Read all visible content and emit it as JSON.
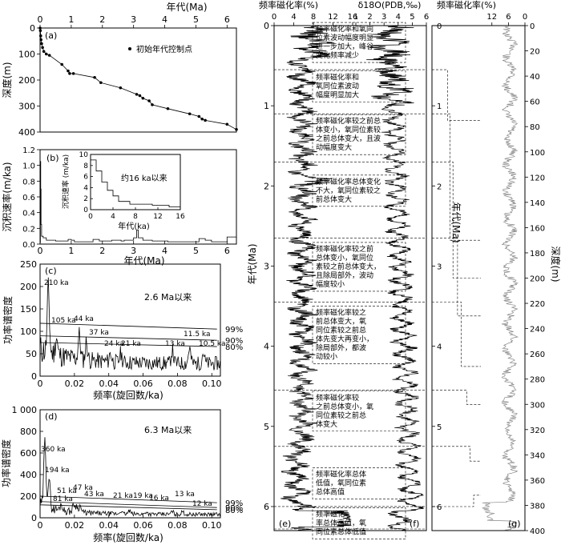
{
  "chart_data": [
    {
      "id": "a",
      "type": "line",
      "panel_label": "(a)",
      "xlabel": "年代(Ma)",
      "ylabel": "深度(m)",
      "xlim": [
        0,
        6.3
      ],
      "ylim": [
        400,
        0
      ],
      "xticks": [
        "0",
        "1",
        "2",
        "3",
        "4",
        "5",
        "6"
      ],
      "yticks": [
        "0",
        "100",
        "200",
        "300",
        "400"
      ],
      "legend": "初始年代控制点",
      "series": [
        {
          "x": [
            0,
            0.01,
            0.02,
            0.03,
            0.05,
            0.08,
            0.12,
            0.2,
            0.3,
            0.7,
            0.9,
            0.95,
            1.07,
            1.75,
            1.95,
            2.58,
            3.1,
            3.2,
            3.3,
            3.5,
            3.6,
            4.1,
            4.8,
            5.1,
            5.2,
            5.3,
            6.0,
            6.3
          ],
          "y": [
            0,
            10,
            30,
            45,
            60,
            75,
            90,
            100,
            105,
            140,
            165,
            175,
            175,
            190,
            210,
            230,
            255,
            260,
            270,
            280,
            295,
            310,
            330,
            340,
            350,
            355,
            370,
            390
          ]
        }
      ]
    },
    {
      "id": "b",
      "type": "line",
      "panel_label": "(b)",
      "xlabel": "年代(Ma)",
      "ylabel": "沉积速率(m/ka)",
      "xlim": [
        0,
        6.3
      ],
      "ylim": [
        0,
        1.2
      ],
      "xticks": [
        "0",
        "1",
        "2",
        "3",
        "4",
        "5",
        "6"
      ],
      "yticks": [
        "0.0",
        "0.2",
        "0.4",
        "0.6",
        "0.8",
        "1.0",
        "1.2"
      ],
      "series": [
        {
          "x": [
            0,
            0.01,
            0.02,
            0.03,
            0.05,
            0.1,
            0.2,
            0.5,
            0.9,
            1.0,
            1.1,
            1.7,
            1.9,
            2.3,
            2.6,
            2.7,
            3.0,
            3.1,
            3.15,
            3.3,
            3.6,
            4.1,
            4.8,
            5.1,
            5.3,
            5.5,
            6.0,
            6.3
          ],
          "y": [
            0.02,
            1.05,
            0.7,
            0.25,
            0.1,
            0.08,
            0.05,
            0.04,
            0.06,
            0.05,
            0.03,
            0.06,
            0.04,
            0.05,
            0.04,
            0.05,
            0.08,
            0.18,
            0.08,
            0.05,
            0.04,
            0.03,
            0.03,
            0.07,
            0.05,
            0.03,
            0.09,
            0.05
          ]
        }
      ],
      "inset": {
        "title": "约16 ka以来",
        "xlabel": "年代(ka)",
        "ylabel": "沉积速率 (m/ka)",
        "xlim": [
          0,
          16
        ],
        "ylim": [
          0,
          10
        ],
        "xticks": [
          "0",
          "4",
          "8",
          "12",
          "16"
        ],
        "yticks": [
          "0",
          "2",
          "4",
          "6",
          "8",
          "10"
        ],
        "x": [
          0,
          1,
          1,
          2,
          2,
          3,
          3,
          4,
          4,
          5,
          5,
          7,
          7,
          11,
          11,
          14,
          14,
          16
        ],
        "y": [
          9,
          9,
          7,
          7,
          5,
          5,
          3.5,
          3.5,
          2.5,
          2.5,
          1.5,
          1.5,
          1.0,
          1.0,
          0.8,
          0.8,
          0.5,
          0.5
        ]
      }
    },
    {
      "id": "c",
      "type": "line",
      "panel_label": "(c)",
      "title": "2.6 Ma以来",
      "xlabel": "频率(旋回数/ka)",
      "ylabel": "功率谱密度",
      "xlim": [
        0,
        0.105
      ],
      "ylim": [
        0,
        250
      ],
      "xticks": [
        "0",
        "0.02",
        "0.04",
        "0.06",
        "0.08",
        "0.10"
      ],
      "yticks": [
        "0",
        "50",
        "100",
        "150",
        "200",
        "250"
      ],
      "confidence": [
        {
          "label": "99%",
          "y": [
            118,
            105
          ]
        },
        {
          "label": "90%",
          "y": [
            90,
            80
          ]
        },
        {
          "label": "80%",
          "y": [
            75,
            66
          ]
        }
      ],
      "peaks": [
        "210 ka",
        "105 ka",
        "44 ka",
        "37 ka",
        "24 ka",
        "21 ka",
        "13 ka",
        "11.5 ka",
        "10.5 ka"
      ]
    },
    {
      "id": "d",
      "type": "line",
      "panel_label": "(d)",
      "title": "6.3 Ma以来",
      "xlabel": "频率(旋回数/ka)",
      "ylabel": "功率谱密度",
      "xlim": [
        0,
        0.105
      ],
      "ylim": [
        0,
        1000
      ],
      "xticks": [
        "0",
        "0.02",
        "0.04",
        "0.06",
        "0.08",
        "0.10"
      ],
      "yticks": [
        "0",
        "200",
        "400",
        "600",
        "800",
        "1 000"
      ],
      "confidence": [
        {
          "label": "99%",
          "y": [
            200,
            140
          ]
        },
        {
          "label": "90%",
          "y": [
            150,
            95
          ]
        },
        {
          "label": "80%",
          "y": [
            120,
            75
          ]
        }
      ],
      "peaks": [
        "360 ka",
        "194 ka",
        "81 ka",
        "51 ka",
        "47 ka",
        "43 ka",
        "21 ka",
        "19 ka",
        "16 ka",
        "13 ka",
        "12 ka"
      ]
    },
    {
      "id": "e",
      "type": "line",
      "panel_label": "(e)",
      "xlabel": "频率磁化率(%)",
      "ylabel": "年代(Ma)",
      "xlim": [
        0,
        16
      ],
      "ylim": [
        0,
        6.3
      ],
      "xticks": [
        "0",
        "4",
        "8",
        "12",
        "16"
      ],
      "yticks": [
        "0",
        "1",
        "2",
        "3",
        "4",
        "5",
        "6"
      ],
      "annotations": [
        {
          "age": 0.2,
          "text": [
            "频率磁化率和氧同",
            "位素波动幅度明显",
            "进一步加大，峰谷",
            "变化频率减少"
          ]
        },
        {
          "age": 0.75,
          "text": [
            "频率磁化率和",
            "氧同位素波动",
            "幅度明显加大"
          ]
        },
        {
          "age": 1.35,
          "text": [
            "频率磁化率较之前总",
            "体变小，氧同位素较",
            "之前总体变大，且波",
            "动幅度变大"
          ]
        },
        {
          "age": 2.05,
          "text": [
            "频率磁化率总体变化",
            "不大，氧同位素较之",
            "前总体变大"
          ]
        },
        {
          "age": 3.0,
          "text": [
            "频率磁化率较之前",
            "总体变小，氧同位",
            "素较之前总体变大，",
            "且除局部外，波动",
            "幅度较小"
          ]
        },
        {
          "age": 3.85,
          "text": [
            "频率磁化率较之",
            "前总体变大，氧",
            "同位素较之前总",
            "体先变大再变小，",
            "除局部外，都波",
            "动较小"
          ]
        },
        {
          "age": 4.8,
          "text": [
            "频率磁化率较",
            "之前总体变小，氧",
            "同位素较之前总",
            "体变大"
          ]
        },
        {
          "age": 5.7,
          "text": [
            "频率磁化率总体",
            "低值，氧同位素",
            "总体高值"
          ]
        },
        {
          "age": 6.2,
          "text": [
            "频率磁化",
            "率总体高值，氧",
            "同位素总体低值"
          ]
        }
      ]
    },
    {
      "id": "f",
      "type": "line",
      "panel_label": "(f)",
      "xlabel": "δ18O(PDB,‰)",
      "ylabel": "年代(Ma)",
      "xlim": [
        1,
        6
      ],
      "ylim": [
        0,
        6.3
      ],
      "xticks": [
        "1",
        "2",
        "3",
        "4",
        "5",
        "6"
      ],
      "yticks": [
        "0",
        "1",
        "2",
        "3",
        "4",
        "5",
        "6"
      ]
    },
    {
      "id": "g",
      "type": "line",
      "panel_label": "(g)",
      "xlabel": "频率磁化率(%)",
      "ylabel": "深度(m)",
      "xlim": [
        16,
        0
      ],
      "ylim": [
        0,
        400
      ],
      "xticks": [
        "12",
        "6",
        "0"
      ],
      "yticks": [
        "0",
        "20",
        "40",
        "60",
        "80",
        "100",
        "120",
        "140",
        "160",
        "180",
        "200",
        "220",
        "240",
        "260",
        "280",
        "300",
        "320",
        "340",
        "360",
        "380",
        "400"
      ]
    }
  ]
}
